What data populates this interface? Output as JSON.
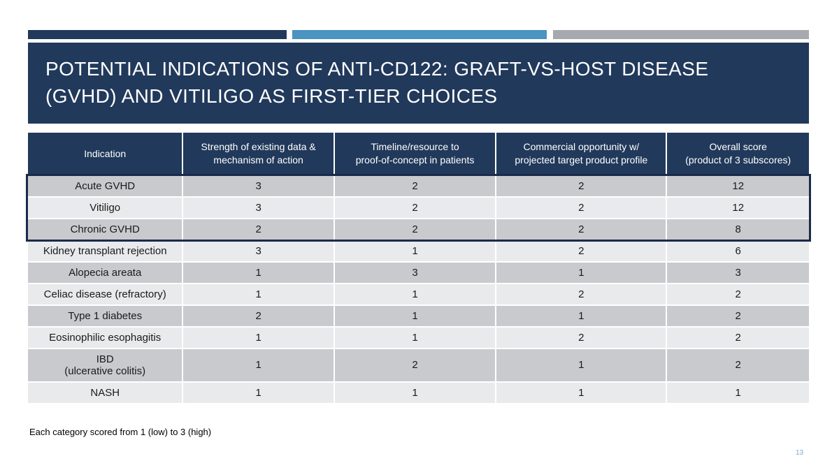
{
  "slide": {
    "title_line1": "POTENTIAL INDICATIONS OF ANTI-CD122: GRAFT-VS-HOST DISEASE",
    "title_line2": "(GVHD) AND VITILIGO AS FIRST-TIER CHOICES",
    "footnote": "Each category scored from 1 (low) to 3 (high)",
    "page_number": "13"
  },
  "colors": {
    "navy": "#21395B",
    "accent_blue": "#4A94BF",
    "gray_bar": "#A6A9AD",
    "row_dark": "#C9CACE",
    "row_light": "#E9EAEC",
    "highlight_border": "#1A2A4A",
    "page_number_blue": "#7FA8C9"
  },
  "chart_data": {
    "type": "table",
    "title": "Potential indications of anti-CD122 scoring matrix",
    "columns": [
      "Indication",
      "Strength of existing data & mechanism of action",
      "Timeline/resource to proof-of-concept in patients",
      "Commercial opportunity w/ projected target product profile",
      "Overall score (product of 3 subscores)"
    ],
    "rows": [
      [
        "Acute GVHD",
        3,
        2,
        2,
        12
      ],
      [
        "Vitiligo",
        3,
        2,
        2,
        12
      ],
      [
        "Chronic GVHD",
        2,
        2,
        2,
        8
      ],
      [
        "Kidney transplant rejection",
        3,
        1,
        2,
        6
      ],
      [
        "Alopecia areata",
        1,
        3,
        1,
        3
      ],
      [
        "Celiac disease (refractory)",
        1,
        1,
        2,
        2
      ],
      [
        "Type 1 diabetes",
        2,
        1,
        1,
        2
      ],
      [
        "Eosinophilic esophagitis",
        1,
        1,
        2,
        2
      ],
      [
        "IBD (ulcerative colitis)",
        1,
        2,
        1,
        2
      ],
      [
        "NASH",
        1,
        1,
        1,
        1
      ]
    ],
    "highlighted_rows": [
      "Acute GVHD",
      "Vitiligo",
      "Chronic GVHD"
    ]
  },
  "table": {
    "columns": [
      "Indication",
      "Strength of existing data &\nmechanism of action",
      "Timeline/resource to\nproof-of-concept in patients",
      "Commercial opportunity w/\nprojected target product profile",
      "Overall score\n(product of 3 subscores)"
    ],
    "rows": [
      {
        "indication": "Acute GVHD",
        "scores": [
          "3",
          "2",
          "2",
          "12"
        ]
      },
      {
        "indication": "Vitiligo",
        "scores": [
          "3",
          "2",
          "2",
          "12"
        ]
      },
      {
        "indication": "Chronic GVHD",
        "scores": [
          "2",
          "2",
          "2",
          "8"
        ]
      },
      {
        "indication": "Kidney transplant rejection",
        "scores": [
          "3",
          "1",
          "2",
          "6"
        ]
      },
      {
        "indication": "Alopecia areata",
        "scores": [
          "1",
          "3",
          "1",
          "3"
        ]
      },
      {
        "indication": "Celiac disease (refractory)",
        "scores": [
          "1",
          "1",
          "2",
          "2"
        ]
      },
      {
        "indication": "Type 1 diabetes",
        "scores": [
          "2",
          "1",
          "1",
          "2"
        ]
      },
      {
        "indication": "Eosinophilic esophagitis",
        "scores": [
          "1",
          "1",
          "2",
          "2"
        ]
      },
      {
        "indication": "IBD\n(ulcerative colitis)",
        "scores": [
          "1",
          "2",
          "1",
          "2"
        ]
      },
      {
        "indication": "NASH",
        "scores": [
          "1",
          "1",
          "1",
          "1"
        ]
      }
    ]
  }
}
